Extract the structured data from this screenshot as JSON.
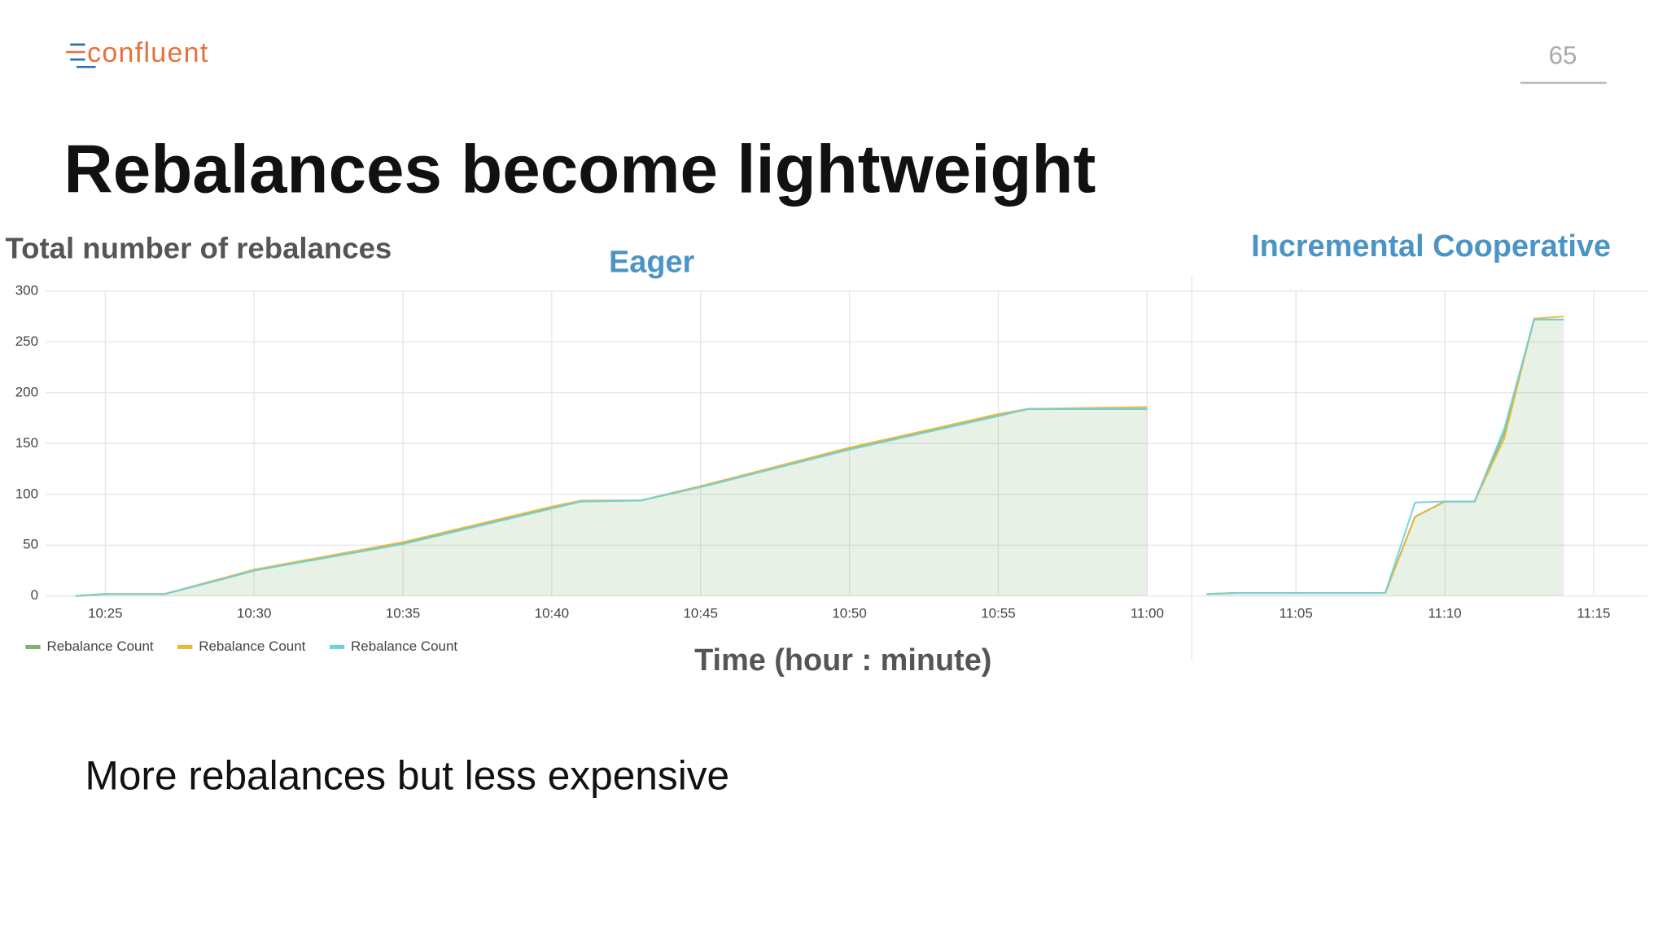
{
  "slide": {
    "logo": "confluent",
    "page_number": "65",
    "title": "Rebalances become lightweight",
    "bullet": "More rebalances but less expensive"
  },
  "chart_data": {
    "type": "line",
    "ylabel": "Total number of rebalances",
    "xlabel": "Time (hour : minute)",
    "panel_titles": [
      "Eager",
      "Incremental Cooperative"
    ],
    "x": [
      "10:24",
      "10:25",
      "10:27",
      "10:29",
      "10:30",
      "10:35",
      "10:40",
      "10:41",
      "10:43",
      "10:45",
      "10:50",
      "10:55",
      "10:56",
      "11:00",
      "11:01",
      "11:02",
      "11:03",
      "11:08",
      "11:09",
      "11:10",
      "11:11",
      "11:12",
      "11:13",
      "11:14"
    ],
    "series": [
      {
        "name": "Rebalance Count",
        "color": "#7eb26d",
        "values": [
          0,
          2,
          2,
          17,
          25,
          52,
          87,
          93,
          94,
          108,
          145,
          178,
          184,
          184,
          null,
          2,
          3,
          3,
          78,
          93,
          93,
          160,
          272,
          272
        ]
      },
      {
        "name": "Rebalance Count",
        "color": "#eab839",
        "values": [
          0,
          2,
          2,
          18,
          26,
          53,
          88,
          94,
          94,
          108,
          146,
          179,
          184,
          186,
          null,
          2,
          3,
          3,
          78,
          93,
          93,
          155,
          273,
          275
        ]
      },
      {
        "name": "Rebalance Count",
        "color": "#6ed0e0",
        "values": [
          0,
          2,
          2,
          17,
          25,
          51,
          86,
          93,
          94,
          107,
          144,
          177,
          184,
          184,
          null,
          2,
          3,
          3,
          92,
          93,
          93,
          165,
          272,
          272
        ]
      }
    ],
    "xlim": [
      "10:23",
      "11:17"
    ],
    "xticks": [
      "10:25",
      "10:30",
      "10:35",
      "10:40",
      "10:45",
      "10:50",
      "10:55",
      "11:00",
      "11:05",
      "11:10",
      "11:15"
    ],
    "ylim": [
      0,
      300
    ],
    "yticks": [
      0,
      50,
      100,
      150,
      200,
      250,
      300
    ],
    "grid": true,
    "legend": "bottom-left"
  }
}
